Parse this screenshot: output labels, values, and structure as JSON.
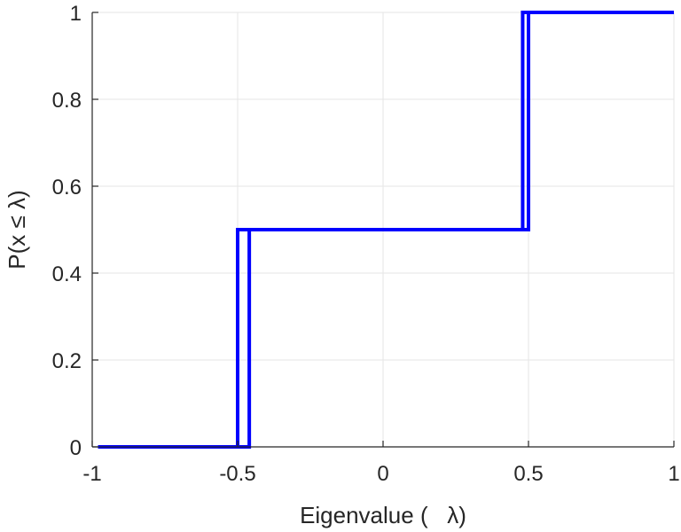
{
  "chart_data": {
    "type": "line",
    "xlabel": "Eigenvalue (   λ)",
    "ylabel": "P(x ≤ λ)",
    "xlim": [
      -1,
      1
    ],
    "ylim": [
      0,
      1
    ],
    "grid": true,
    "xticks": [
      -1,
      -0.5,
      0,
      0.5,
      1
    ],
    "xtick_labels": [
      "-1",
      "-0.5",
      "0",
      "0.5",
      "1"
    ],
    "yticks": [
      0,
      0.2,
      0.4,
      0.6,
      0.8,
      1
    ],
    "ytick_labels": [
      "0",
      "0.2",
      "0.4",
      "0.6",
      "0.8",
      "1"
    ],
    "series": [
      {
        "color": "#0000ff",
        "x": [
          -0.98,
          -0.5,
          -0.5,
          0.5,
          0.5,
          1.0
        ],
        "y": [
          0,
          0,
          0.5,
          0.5,
          1,
          1
        ]
      },
      {
        "color": "#0000ff",
        "x": [
          -0.98,
          -0.46,
          -0.46,
          0.48,
          0.48,
          1.0
        ],
        "y": [
          0,
          0,
          0.5,
          0.5,
          1,
          1
        ]
      }
    ]
  }
}
